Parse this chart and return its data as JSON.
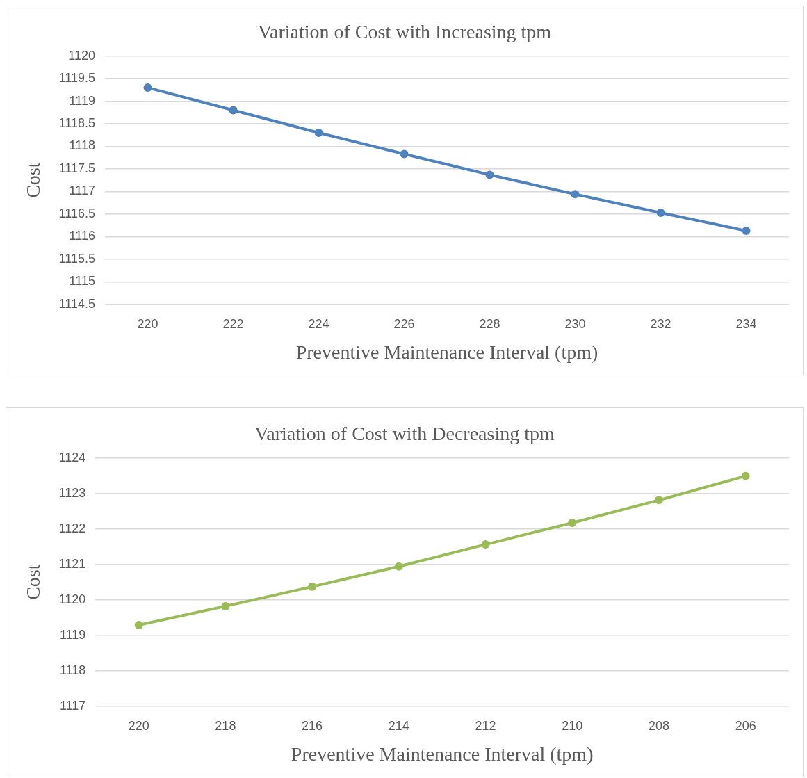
{
  "chart_data": [
    {
      "type": "line",
      "title": "Variation of Cost with Increasing tpm",
      "xlabel": "Preventive Maintenance Interval (tpm)",
      "ylabel": "Cost",
      "categories": [
        "220",
        "222",
        "224",
        "226",
        "228",
        "230",
        "232",
        "234"
      ],
      "series": [
        {
          "color": "#4f81bd",
          "values": [
            1119.3,
            1118.8,
            1118.3,
            1117.83,
            1117.37,
            1116.94,
            1116.53,
            1116.13
          ]
        }
      ],
      "ylim": [
        1114.5,
        1120
      ],
      "yticks": [
        1114.5,
        1115,
        1115.5,
        1116,
        1116.5,
        1117,
        1117.5,
        1118,
        1118.5,
        1119,
        1119.5,
        1120
      ],
      "grid": "y",
      "legend": false,
      "marker": "circle",
      "line_style": "solid"
    },
    {
      "type": "line",
      "title": "Variation of Cost with Decreasing tpm",
      "xlabel": "Preventive Maintenance Interval (tpm)",
      "ylabel": "Cost",
      "categories": [
        "220",
        "218",
        "216",
        "214",
        "212",
        "210",
        "208",
        "206"
      ],
      "series": [
        {
          "color": "#9bbb59",
          "values": [
            1119.29,
            1119.82,
            1120.37,
            1120.94,
            1121.56,
            1122.17,
            1122.81,
            1123.49
          ]
        }
      ],
      "ylim": [
        1117,
        1124
      ],
      "yticks": [
        1117,
        1118,
        1119,
        1120,
        1121,
        1122,
        1123,
        1124
      ],
      "grid": "y",
      "legend": false,
      "marker": "circle",
      "line_style": "solid"
    }
  ]
}
